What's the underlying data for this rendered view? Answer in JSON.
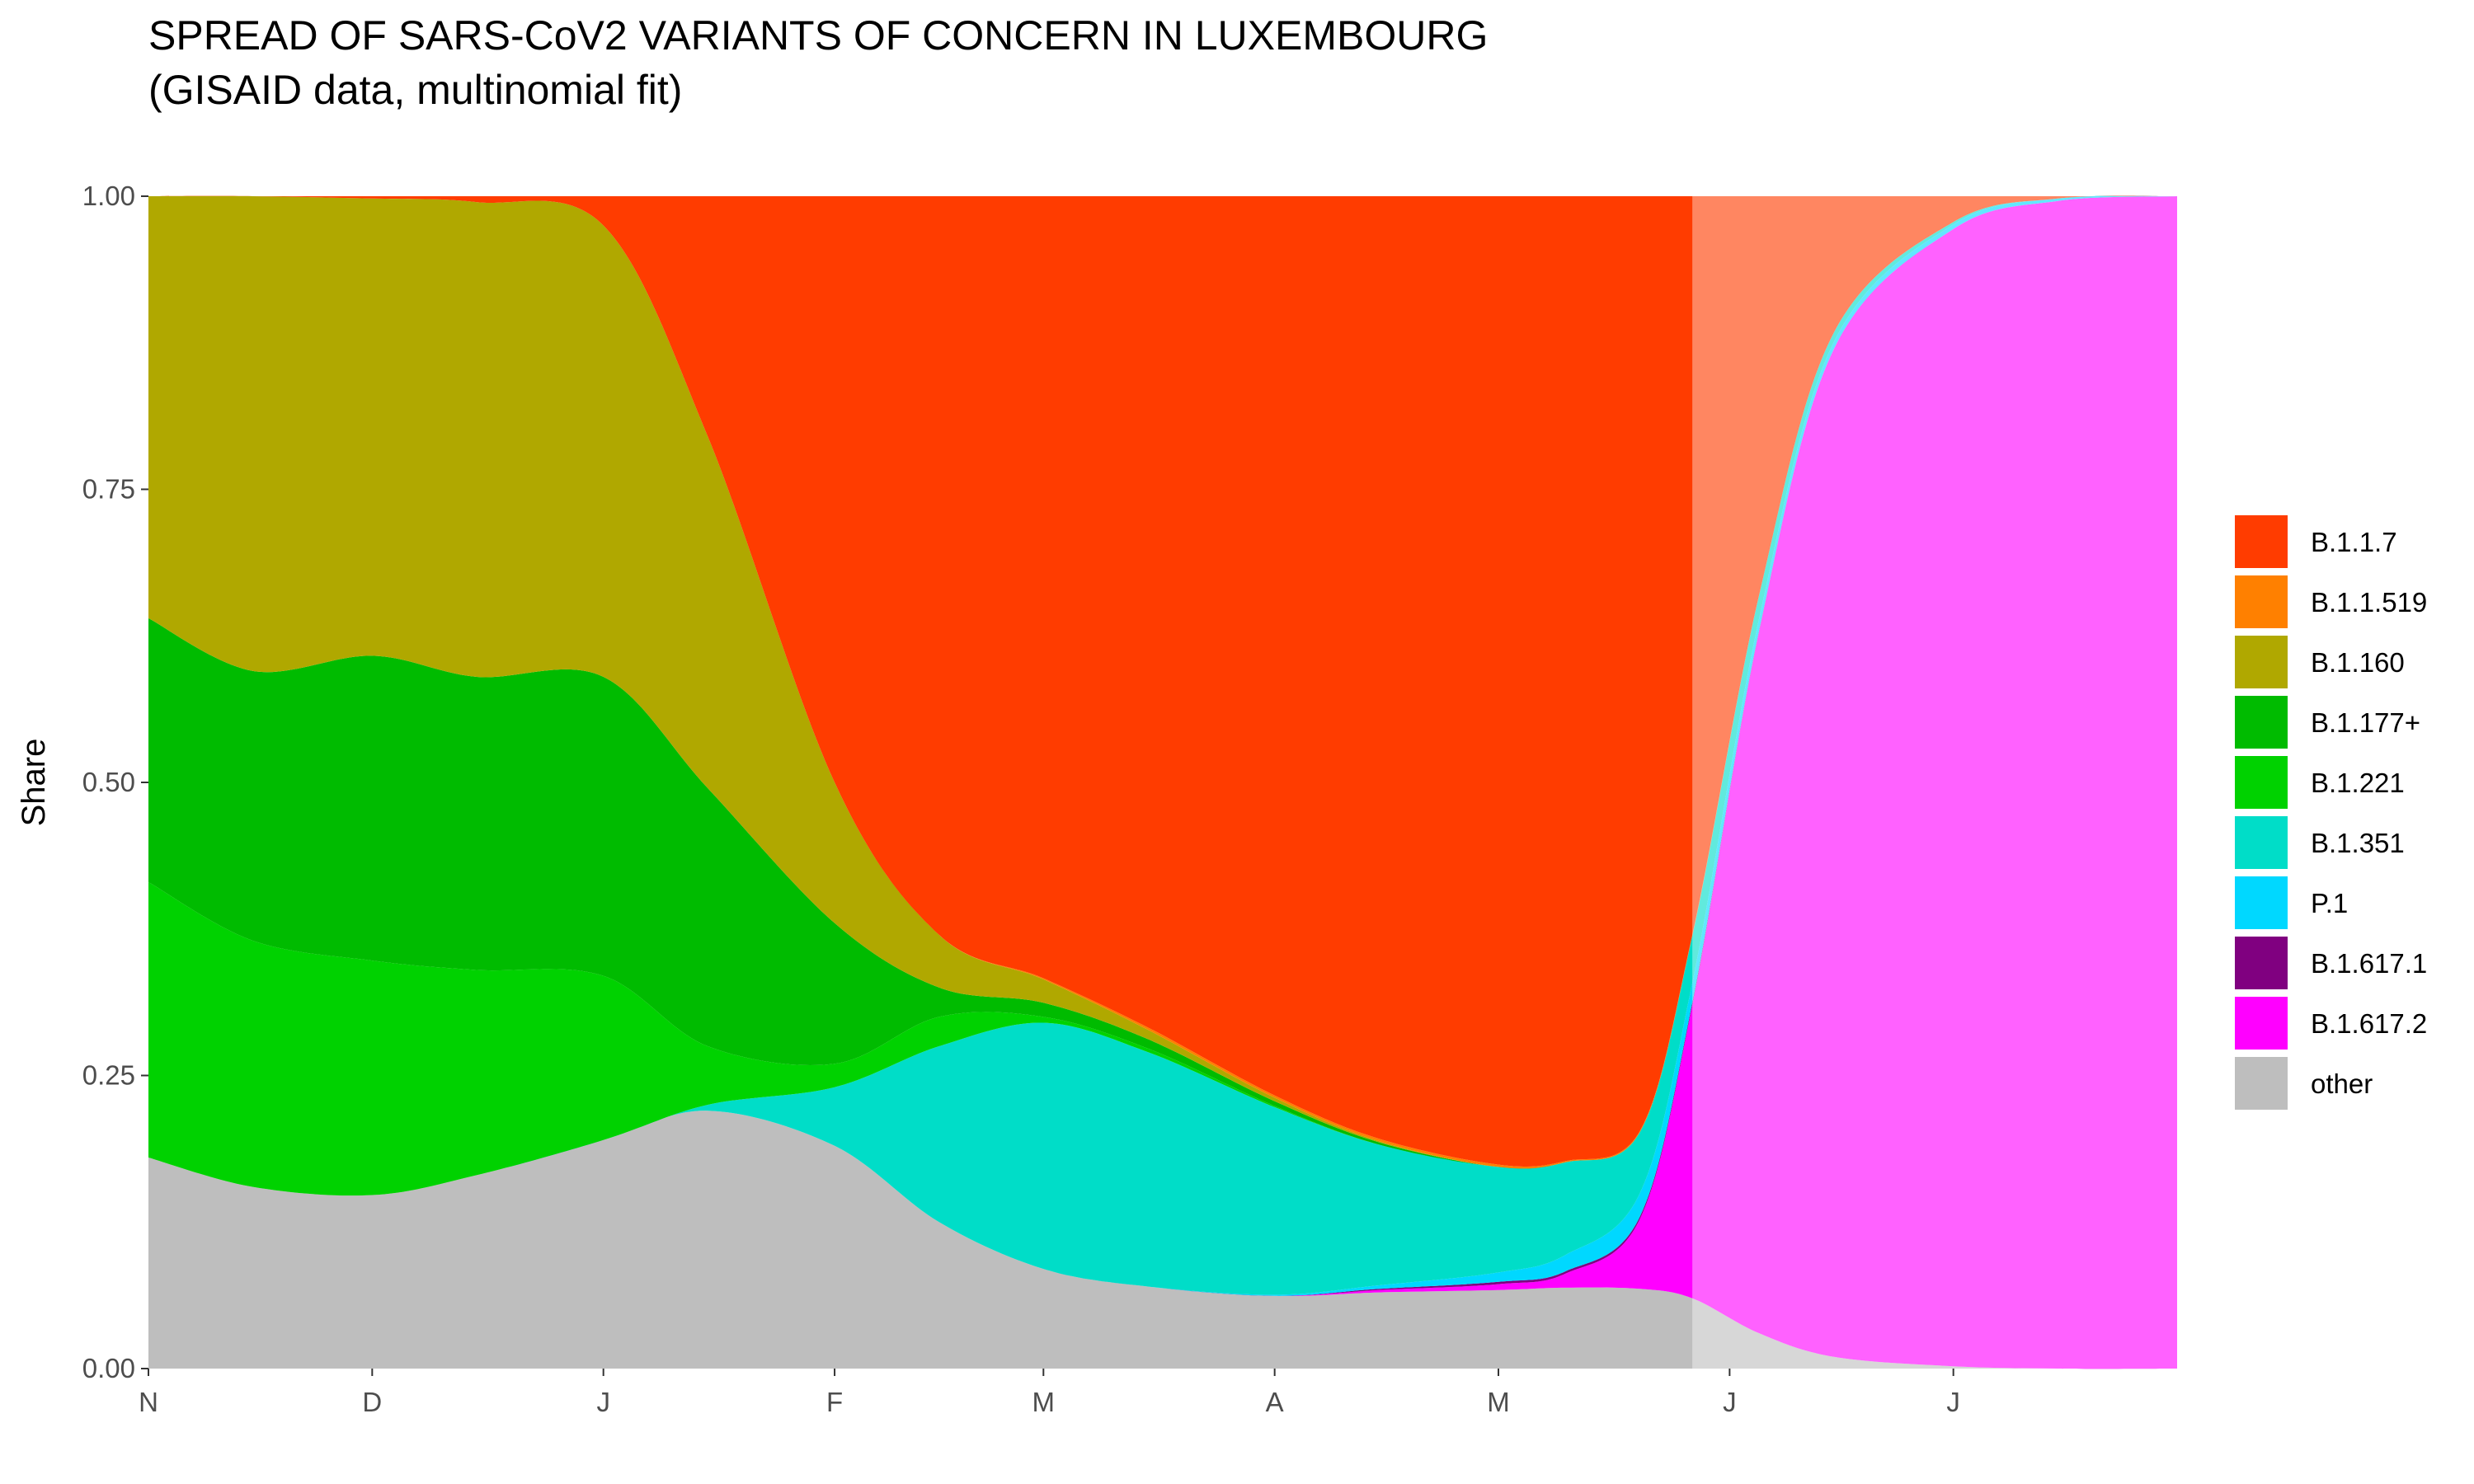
{
  "chart_data": {
    "type": "area",
    "title": "SPREAD OF SARS-CoV2 VARIANTS OF CONCERN IN LUXEMBOURG",
    "subtitle": "(GISAID data, multinomial fit)",
    "xlabel": "",
    "ylabel": "Share",
    "stacked": true,
    "x_ticks": [
      "N",
      "D",
      "J",
      "F",
      "M",
      "A",
      "M",
      "J",
      "J"
    ],
    "y_ticks": [
      "0.00",
      "0.25",
      "0.50",
      "0.75",
      "1.00"
    ],
    "ylim": [
      0,
      1
    ],
    "x": [
      "2020-11-01",
      "2020-11-15",
      "2020-12-01",
      "2020-12-15",
      "2021-01-01",
      "2021-01-15",
      "2021-02-01",
      "2021-02-15",
      "2021-03-01",
      "2021-03-15",
      "2021-04-01",
      "2021-04-15",
      "2021-05-01",
      "2021-05-10",
      "2021-05-20",
      "2021-05-27",
      "2021-06-05",
      "2021-06-15",
      "2021-07-01",
      "2021-07-15",
      "2021-07-31"
    ],
    "fit_end_date": "2021-05-27",
    "series": [
      {
        "name": "other",
        "color": "#bebebe",
        "values": [
          0.18,
          0.155,
          0.148,
          0.165,
          0.195,
          0.22,
          0.19,
          0.125,
          0.085,
          0.07,
          0.062,
          0.065,
          0.067,
          0.069,
          0.068,
          0.06,
          0.03,
          0.01,
          0.002,
          0.0,
          0.0
        ]
      },
      {
        "name": "B.1.617.2",
        "color": "#ff00ff",
        "values": [
          0,
          0,
          0,
          0,
          0,
          0,
          0,
          0,
          0,
          0,
          0,
          0.002,
          0.005,
          0.012,
          0.06,
          0.25,
          0.6,
          0.86,
          0.97,
          0.996,
          1.0
        ]
      },
      {
        "name": "B.1.617.1",
        "color": "#800080",
        "values": [
          0,
          0,
          0,
          0,
          0,
          0,
          0,
          0,
          0,
          0,
          0,
          0.001,
          0.002,
          0.002,
          0.002,
          0.002,
          0.001,
          0.0,
          0.0,
          0.0,
          0.0
        ]
      },
      {
        "name": "P.1",
        "color": "#00d8ff",
        "values": [
          0,
          0,
          0,
          0,
          0,
          0,
          0,
          0,
          0,
          0,
          0.001,
          0.003,
          0.008,
          0.014,
          0.02,
          0.017,
          0.01,
          0.006,
          0.004,
          0.002,
          0.0
        ]
      },
      {
        "name": "B.1.351",
        "color": "#00ddc8",
        "values": [
          0,
          0,
          0,
          0,
          0,
          0.005,
          0.05,
          0.15,
          0.21,
          0.2,
          0.16,
          0.12,
          0.09,
          0.079,
          0.052,
          0.04,
          0.02,
          0.008,
          0.002,
          0.0,
          0.0
        ]
      },
      {
        "name": "B.1.221",
        "color": "#00d200",
        "values": [
          0.235,
          0.21,
          0.2,
          0.175,
          0.14,
          0.05,
          0.02,
          0.025,
          0.005,
          0.003,
          0.001,
          0.0,
          0.0,
          0.0,
          0.0,
          0.0,
          0.0,
          0.0,
          0.0,
          0.0,
          0.0
        ]
      },
      {
        "name": "B.1.177+",
        "color": "#00bb00",
        "values": [
          0.225,
          0.23,
          0.26,
          0.25,
          0.255,
          0.22,
          0.12,
          0.025,
          0.012,
          0.008,
          0.004,
          0.002,
          0.0,
          0.0,
          0.0,
          0.0,
          0.0,
          0.0,
          0.0,
          0.0,
          0.0
        ]
      },
      {
        "name": "B.1.160",
        "color": "#b0a800",
        "values": [
          0.36,
          0.405,
          0.39,
          0.405,
          0.385,
          0.3,
          0.12,
          0.045,
          0.02,
          0.008,
          0.003,
          0.001,
          0.0,
          0.0,
          0.0,
          0.0,
          0.0,
          0.0,
          0.0,
          0.0,
          0.0
        ]
      },
      {
        "name": "B.1.1.519",
        "color": "#ff8000",
        "values": [
          0,
          0,
          0,
          0,
          0,
          0,
          0,
          0,
          0.001,
          0.002,
          0.002,
          0.002,
          0.002,
          0.001,
          0.001,
          0.001,
          0.0,
          0.0,
          0.0,
          0.0,
          0.0
        ]
      },
      {
        "name": "B.1.1.7",
        "color": "#ff3c00",
        "values": [
          0,
          0,
          0.002,
          0.005,
          0.025,
          0.205,
          0.5,
          0.63,
          0.667,
          0.709,
          0.767,
          0.804,
          0.826,
          0.823,
          0.797,
          0.63,
          0.339,
          0.116,
          0.022,
          0.002,
          0.0
        ]
      }
    ],
    "legend": {
      "position": "right",
      "entries": [
        {
          "label": "B.1.1.7",
          "color": "#ff3c00"
        },
        {
          "label": "B.1.1.519",
          "color": "#ff8000"
        },
        {
          "label": "B.1.160",
          "color": "#b0a800"
        },
        {
          "label": "B.1.177+",
          "color": "#00bb00"
        },
        {
          "label": "B.1.221",
          "color": "#00d200"
        },
        {
          "label": "B.1.351",
          "color": "#00ddc8"
        },
        {
          "label": "P.1",
          "color": "#00d8ff"
        },
        {
          "label": "B.1.617.1",
          "color": "#800080"
        },
        {
          "label": "B.1.617.2",
          "color": "#ff00ff"
        },
        {
          "label": "other",
          "color": "#bebebe"
        }
      ]
    },
    "grid": false
  }
}
